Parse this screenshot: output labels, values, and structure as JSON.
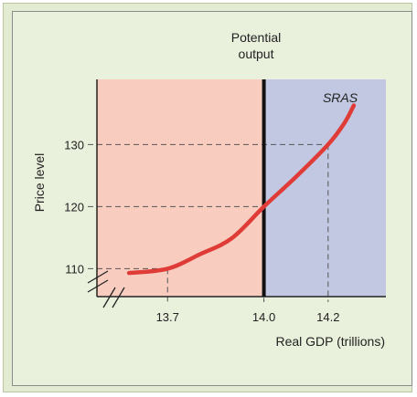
{
  "chart_data": {
    "type": "line",
    "title": "",
    "xlabel": "Real GDP (trillions)",
    "ylabel": "Price level",
    "xlim": [
      13.48,
      14.38
    ],
    "ylim": [
      105.5,
      140.5
    ],
    "x_ticks": [
      13.7,
      14.0,
      14.2
    ],
    "x_tick_labels": [
      "13.7",
      "14.0",
      "14.2"
    ],
    "y_ticks": [
      110,
      120,
      130
    ],
    "y_tick_labels": [
      "110",
      "120",
      "130"
    ],
    "axis_breaks": true,
    "regions": [
      {
        "x_from": 13.48,
        "x_to": 14.0,
        "color": "#f8ccbf"
      },
      {
        "x_from": 14.0,
        "x_to": 14.38,
        "color": "#c2c8e2"
      }
    ],
    "vertical_line": {
      "x": 14.0,
      "label": "Potential output"
    },
    "guides": [
      {
        "x": 13.7,
        "y": 110
      },
      {
        "x": 14.0,
        "y": 120
      },
      {
        "x": 14.2,
        "y": 130
      }
    ],
    "series": [
      {
        "name": "SRAS",
        "color": "#e03c37",
        "points": [
          [
            13.58,
            109.3
          ],
          [
            13.7,
            110
          ],
          [
            13.8,
            112.3
          ],
          [
            13.9,
            114.9
          ],
          [
            14.0,
            120
          ],
          [
            14.1,
            124.8
          ],
          [
            14.2,
            130
          ],
          [
            14.25,
            133.4
          ],
          [
            14.28,
            136.3
          ]
        ]
      }
    ]
  },
  "annotations": {
    "potential_output_line1": "Potential",
    "potential_output_line2": "output",
    "curve_label": "SRAS"
  }
}
